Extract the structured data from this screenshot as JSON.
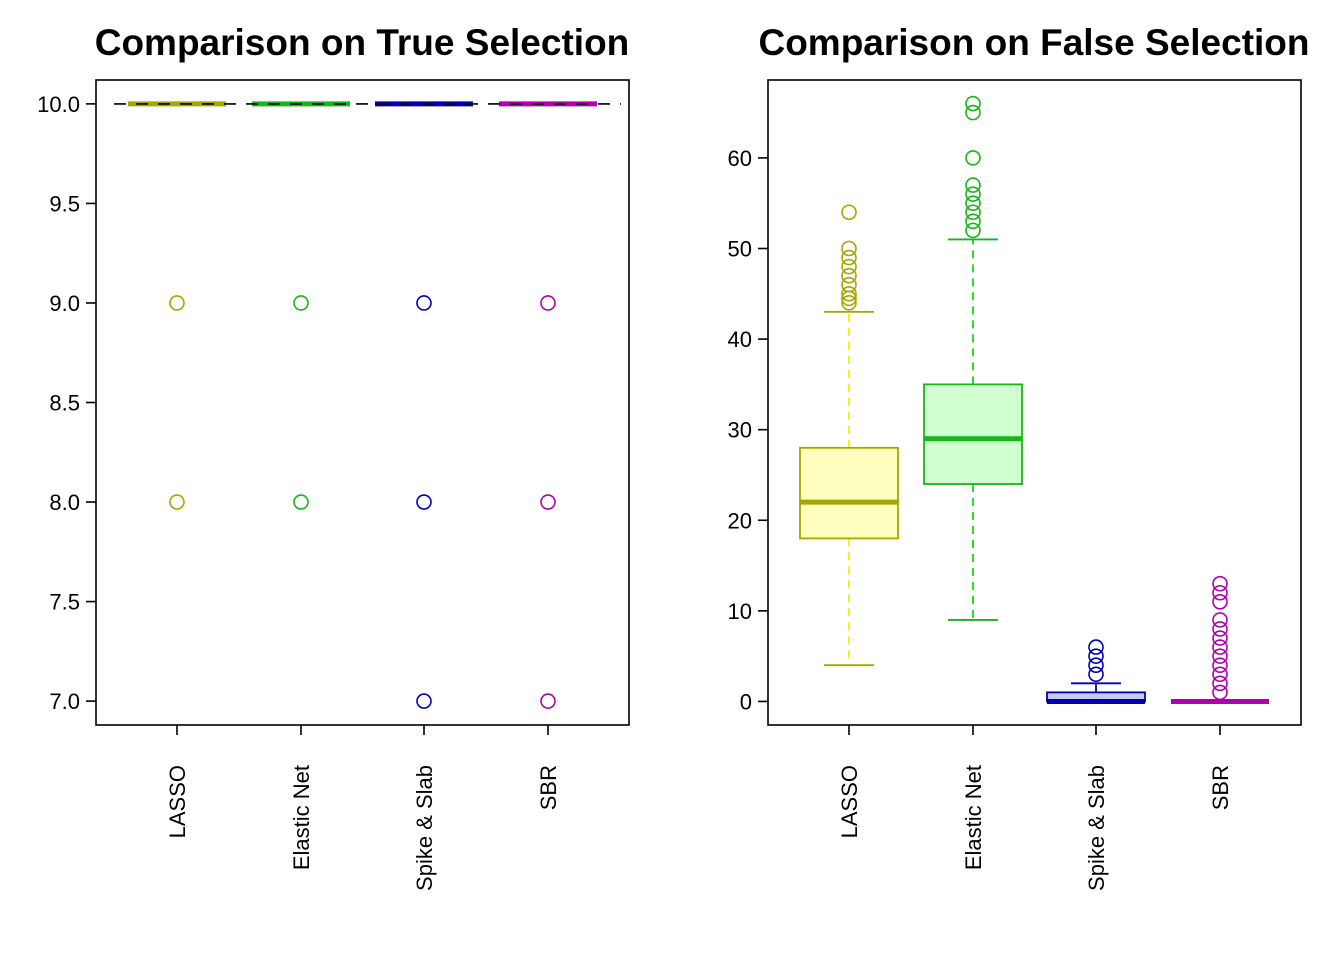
{
  "chart_data": [
    {
      "type": "boxplot",
      "title": "Comparison on True Selection",
      "xlabel": "",
      "ylabel": "",
      "ylim": [
        6.88,
        10.12
      ],
      "yticks": [
        "7.0",
        "7.5",
        "8.0",
        "8.5",
        "9.0",
        "9.5",
        "10.0"
      ],
      "reference_line": {
        "y": 10,
        "style": "dashed",
        "color": "#000000"
      },
      "categories": [
        "LASSO",
        "Elastic Net",
        "Spike & Slab",
        "SBR"
      ],
      "series": [
        {
          "category": "LASSO",
          "color": "#a6a600",
          "fill": "#ffffc0",
          "box": {
            "min": 10,
            "q1": 10,
            "median": 10,
            "q3": 10,
            "max": 10
          },
          "outliers": [
            9,
            8
          ]
        },
        {
          "category": "Elastic Net",
          "color": "#19b419",
          "fill": "#d0ffd0",
          "box": {
            "min": 10,
            "q1": 10,
            "median": 10,
            "q3": 10,
            "max": 10
          },
          "outliers": [
            9,
            8
          ]
        },
        {
          "category": "Spike & Slab",
          "color": "#0000b0",
          "fill": "#c8c8f0",
          "box": {
            "min": 10,
            "q1": 10,
            "median": 10,
            "q3": 10,
            "max": 10
          },
          "outliers": [
            9,
            8,
            7
          ]
        },
        {
          "category": "SBR",
          "color": "#b000b0",
          "fill": "#f0c8f0",
          "box": {
            "min": 10,
            "q1": 10,
            "median": 10,
            "q3": 10,
            "max": 10
          },
          "outliers": [
            9,
            8,
            7
          ]
        }
      ]
    },
    {
      "type": "boxplot",
      "title": "Comparison on False Selection",
      "xlabel": "",
      "ylabel": "",
      "ylim": [
        -2.6,
        68.6
      ],
      "yticks": [
        "0",
        "10",
        "20",
        "30",
        "40",
        "50",
        "60"
      ],
      "categories": [
        "LASSO",
        "Elastic Net",
        "Spike & Slab",
        "SBR"
      ],
      "series": [
        {
          "category": "LASSO",
          "color": "#a6a600",
          "whisker_color": "#f0f000",
          "fill": "#ffffc0",
          "box": {
            "min": 4,
            "q1": 18,
            "median": 22,
            "q3": 28,
            "max": 43
          },
          "outliers": [
            44,
            44.5,
            45,
            46,
            47,
            48,
            49,
            50,
            54
          ]
        },
        {
          "category": "Elastic Net",
          "color": "#19b419",
          "whisker_color": "#19d419",
          "fill": "#d0ffd0",
          "box": {
            "min": 9,
            "q1": 24,
            "median": 29,
            "q3": 35,
            "max": 51
          },
          "outliers": [
            52,
            53,
            54,
            55,
            56,
            57,
            60,
            65,
            66
          ]
        },
        {
          "category": "Spike & Slab",
          "color": "#0000b0",
          "whisker_color": "#0000b0",
          "fill": "#c8c8f0",
          "box": {
            "min": 0,
            "q1": 0,
            "median": 0,
            "q3": 1,
            "max": 2
          },
          "outliers": [
            3,
            4,
            5,
            6
          ]
        },
        {
          "category": "SBR",
          "color": "#b000b0",
          "whisker_color": "#b000b0",
          "fill": "#f0c8f0",
          "box": {
            "min": 0,
            "q1": 0,
            "median": 0,
            "q3": 0,
            "max": 0
          },
          "outliers": [
            1,
            2,
            3,
            4,
            5,
            6,
            7,
            8,
            9,
            11,
            12,
            13
          ]
        }
      ]
    }
  ]
}
